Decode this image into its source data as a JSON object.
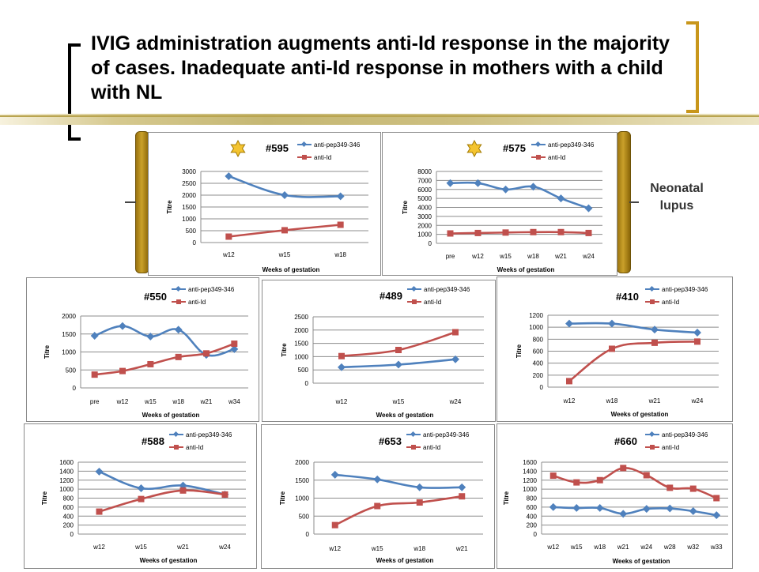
{
  "slide": {
    "title": "IVIG administration augments anti-Id response in the majority of cases. Inadequate anti-Id response in mothers with a child with NL",
    "group_label": "Neonatal lupus",
    "colors": {
      "series1": "#4f81bd",
      "series2": "#c0504d",
      "star": "#f4c430",
      "brace": "#c8961b"
    }
  },
  "chart_data": [
    {
      "type": "line",
      "title": "#595",
      "star": true,
      "x": [
        "w12",
        "w15",
        "w18"
      ],
      "xlabel": "Weeks of gestation",
      "ylabel": "Titre",
      "ylim": [
        0,
        3000
      ],
      "yticks": [
        "0",
        "500",
        "1000",
        "1500",
        "2000",
        "2500",
        "3000"
      ],
      "grid": true,
      "legend": "top-right",
      "series": [
        {
          "name": "anti-pep349-346",
          "values": [
            2800,
            2000,
            1950
          ]
        },
        {
          "name": "anti-Id",
          "values": [
            250,
            520,
            750
          ]
        }
      ]
    },
    {
      "type": "line",
      "title": "#575",
      "star": true,
      "x": [
        "pre",
        "w12",
        "w15",
        "w18",
        "w21",
        "w24"
      ],
      "xlabel": "Weeks of gestation",
      "ylabel": "Titre",
      "ylim": [
        0,
        8000
      ],
      "yticks": [
        "0",
        "1000",
        "2000",
        "3000",
        "4000",
        "5000",
        "6000",
        "7000",
        "8000"
      ],
      "grid": true,
      "legend": "top-right",
      "series": [
        {
          "name": "anti-pep349-346",
          "values": [
            6700,
            6700,
            6000,
            6300,
            5000,
            3900
          ]
        },
        {
          "name": "anti-Id",
          "values": [
            1100,
            1150,
            1200,
            1250,
            1250,
            1150
          ]
        }
      ]
    },
    {
      "type": "line",
      "title": "#550",
      "star": false,
      "x": [
        "pre",
        "w12",
        "w15",
        "w18",
        "w21",
        "w34"
      ],
      "xlabel": "Weeks of gestation",
      "ylabel": "Titre",
      "ylim": [
        0,
        2000
      ],
      "yticks": [
        "0",
        "500",
        "1000",
        "1500",
        "2000"
      ],
      "grid": true,
      "legend": "top-right",
      "series": [
        {
          "name": "anti-pep349-346",
          "values": [
            1450,
            1720,
            1430,
            1620,
            920,
            1080
          ]
        },
        {
          "name": "anti-Id",
          "values": [
            370,
            470,
            660,
            860,
            960,
            1230
          ]
        }
      ]
    },
    {
      "type": "line",
      "title": "#489",
      "star": false,
      "x": [
        "w12",
        "w15",
        "w24"
      ],
      "xlabel": "Weeks of gestation",
      "ylabel": "Titre",
      "ylim": [
        0,
        2500
      ],
      "yticks": [
        "0",
        "500",
        "1000",
        "1500",
        "2000",
        "2500"
      ],
      "grid": true,
      "legend": "top-right",
      "series": [
        {
          "name": "anti-pep349-346",
          "values": [
            600,
            700,
            900
          ]
        },
        {
          "name": "anti-Id",
          "values": [
            1020,
            1250,
            1920
          ]
        }
      ]
    },
    {
      "type": "line",
      "title": "#410",
      "star": false,
      "x": [
        "w12",
        "w18",
        "w21",
        "w24"
      ],
      "xlabel": "Weeks of gestation",
      "ylabel": "Titre",
      "ylim": [
        0,
        1200
      ],
      "yticks": [
        "0",
        "200",
        "400",
        "600",
        "800",
        "1000",
        "1200"
      ],
      "grid": true,
      "legend": "top-right",
      "series": [
        {
          "name": "anti-pep349-346",
          "values": [
            1060,
            1060,
            960,
            910
          ]
        },
        {
          "name": "anti-Id",
          "values": [
            100,
            640,
            740,
            760
          ]
        }
      ]
    },
    {
      "type": "line",
      "title": "#588",
      "star": false,
      "x": [
        "w12",
        "w15",
        "w21",
        "w24"
      ],
      "xlabel": "Weeks of gestation",
      "ylabel": "Titre",
      "ylim": [
        0,
        1600
      ],
      "yticks": [
        "0",
        "200",
        "400",
        "600",
        "800",
        "1000",
        "1200",
        "1400",
        "1600"
      ],
      "grid": true,
      "legend": "top-right",
      "series": [
        {
          "name": "anti-pep349-346",
          "values": [
            1390,
            1020,
            1080,
            880
          ]
        },
        {
          "name": "anti-Id",
          "values": [
            500,
            780,
            970,
            880
          ]
        }
      ]
    },
    {
      "type": "line",
      "title": "#653",
      "star": false,
      "x": [
        "w12",
        "w15",
        "w18",
        "w21"
      ],
      "xlabel": "Weeks of gestation",
      "ylabel": "Titre",
      "ylim": [
        0,
        2000
      ],
      "yticks": [
        "0",
        "500",
        "1000",
        "1500",
        "2000"
      ],
      "grid": true,
      "legend": "top-right",
      "series": [
        {
          "name": "anti-pep349-346",
          "values": [
            1650,
            1520,
            1300,
            1300
          ]
        },
        {
          "name": "anti-Id",
          "values": [
            250,
            780,
            880,
            1050
          ]
        }
      ]
    },
    {
      "type": "line",
      "title": "#660",
      "star": false,
      "x": [
        "w12",
        "w15",
        "w18",
        "w21",
        "w24",
        "w28",
        "w32",
        "w33"
      ],
      "xlabel": "Weeks of gestation",
      "ylabel": "Titre",
      "ylim": [
        0,
        1600
      ],
      "yticks": [
        "0",
        "200",
        "400",
        "600",
        "800",
        "1000",
        "1200",
        "1400",
        "1600"
      ],
      "grid": true,
      "legend": "top-right",
      "series": [
        {
          "name": "anti-pep349-346",
          "values": [
            600,
            580,
            580,
            450,
            560,
            570,
            510,
            420
          ]
        },
        {
          "name": "anti-Id",
          "values": [
            1300,
            1150,
            1200,
            1470,
            1310,
            1030,
            1010,
            800
          ]
        }
      ]
    }
  ]
}
